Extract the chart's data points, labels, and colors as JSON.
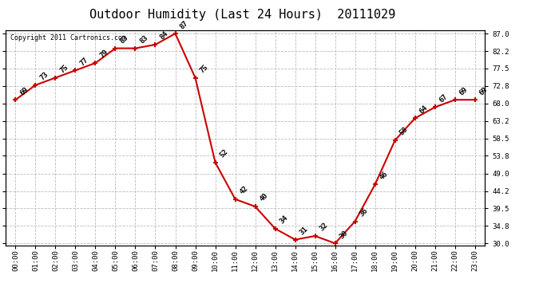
{
  "title": "Outdoor Humidity (Last 24 Hours)  20111029",
  "copyright_text": "Copyright 2011 Cartronics.com",
  "hours": [
    "00:00",
    "01:00",
    "02:00",
    "03:00",
    "04:00",
    "05:00",
    "06:00",
    "07:00",
    "08:00",
    "09:00",
    "10:00",
    "11:00",
    "12:00",
    "13:00",
    "14:00",
    "15:00",
    "16:00",
    "17:00",
    "18:00",
    "19:00",
    "20:00",
    "21:00",
    "22:00",
    "23:00"
  ],
  "values": [
    69,
    73,
    75,
    77,
    79,
    83,
    83,
    84,
    87,
    75,
    52,
    42,
    40,
    34,
    31,
    32,
    30,
    36,
    46,
    58,
    64,
    67,
    69,
    69
  ],
  "line_color": "#cc0000",
  "marker_color": "#cc0000",
  "background_color": "#ffffff",
  "grid_color": "#bbbbbb",
  "ylim_min": 29.5,
  "ylim_max": 88.0,
  "yticks": [
    30.0,
    34.8,
    39.5,
    44.2,
    49.0,
    53.8,
    58.5,
    63.2,
    68.0,
    72.8,
    77.5,
    82.2,
    87.0
  ],
  "title_fontsize": 11,
  "label_fontsize": 6.5,
  "tick_fontsize": 6.5,
  "copyright_fontsize": 6
}
